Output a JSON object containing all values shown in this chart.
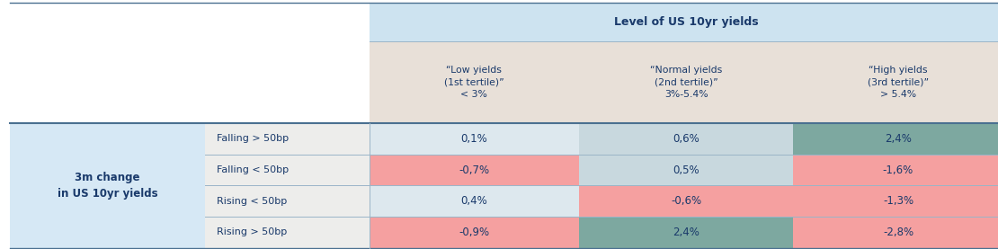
{
  "header_bg": "#cde3f0",
  "col_header_bg": "#e8e0d8",
  "row_label_bg": "#d6e8f5",
  "subrow_label_bg": "#ededeb",
  "text_color": "#1a3a6b",
  "level_header": "Level of US 10yr yields",
  "col_headers": [
    "“Low yields\n(1st tertile)”\n< 3%",
    "“Normal yields\n(2nd tertile)”\n3%-5.4%",
    "“High yields\n(3rd tertile)”\n> 5.4%"
  ],
  "row_main_label": "3m change\nin US 10yr yields",
  "row_labels": [
    "Falling > 50bp",
    "Falling < 50bp",
    "Rising < 50bp",
    "Rising > 50bp"
  ],
  "values": [
    [
      "0,1%",
      "0,6%",
      "2,4%"
    ],
    [
      "-0,7%",
      "0,5%",
      "-1,6%"
    ],
    [
      "0,4%",
      "-0,6%",
      "-1,3%"
    ],
    [
      "-0,9%",
      "2,4%",
      "-2,8%"
    ]
  ],
  "cell_colors": [
    [
      "#dde8ee",
      "#c8d8de",
      "#7da8a0"
    ],
    [
      "#f5a0a0",
      "#c8d8de",
      "#f5a0a0"
    ],
    [
      "#dde8ee",
      "#f5a0a0",
      "#f5a0a0"
    ],
    [
      "#f5a0a0",
      "#7da8a0",
      "#f5a0a0"
    ]
  ],
  "line_color_heavy": "#4a7090",
  "line_color_light": "#9ab5c8",
  "white": "#ffffff",
  "fig_w": 11.1,
  "fig_h": 2.77,
  "dpi": 100
}
